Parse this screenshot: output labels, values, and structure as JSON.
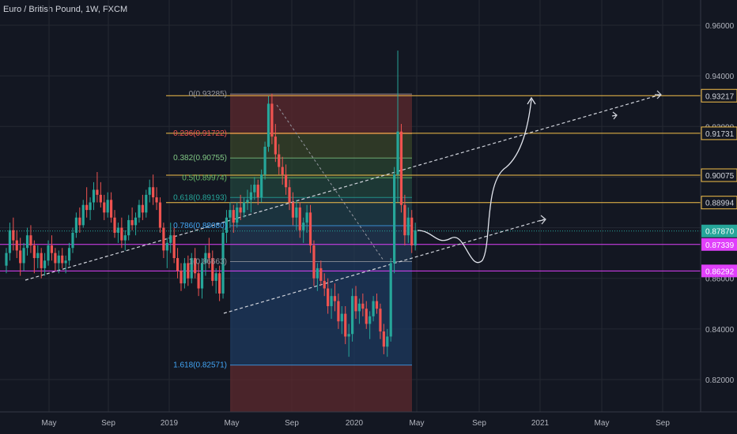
{
  "header": {
    "title": "Euro / British Pound, 1W, FXCM"
  },
  "colors": {
    "background": "#131722",
    "grid": "#242832",
    "up": "#26a69a",
    "down": "#ef5350",
    "fib_red_zone": "#5d2a2e",
    "fib_blue_zone": "#1e3a5f",
    "yellow_level": "#f5c04a",
    "magenta_level": "#e040fb",
    "current_price": "#26a69a"
  },
  "y_axis": {
    "ticks": [
      "0.96000",
      "0.94000",
      "0.92000",
      "0.90000",
      "0.88000",
      "0.86000",
      "0.84000",
      "0.82000"
    ],
    "labels": [
      {
        "text": "0.93217",
        "value": 0.93217,
        "type": "yellow"
      },
      {
        "text": "0.91731",
        "value": 0.91731,
        "type": "yellow"
      },
      {
        "text": "0.90075",
        "value": 0.90075,
        "type": "yellow"
      },
      {
        "text": "0.88994",
        "value": 0.88994,
        "type": "yellow"
      },
      {
        "text": "0.87870",
        "value": 0.8787,
        "type": "current"
      },
      {
        "text": "0.87339",
        "value": 0.87339,
        "type": "magenta"
      },
      {
        "text": "0.86292",
        "value": 0.86292,
        "type": "magenta"
      }
    ]
  },
  "x_axis": {
    "ticks": [
      "May",
      "Sep",
      "2019",
      "May",
      "Sep",
      "2020",
      "May",
      "Sep",
      "2021",
      "May",
      "Sep"
    ]
  },
  "fib_levels": [
    {
      "label": "0(0.93285)",
      "value": 0.93285,
      "color": "#9598a1"
    },
    {
      "label": "0.236(0.91722)",
      "value": 0.91722,
      "color": "#ef5350"
    },
    {
      "label": "0.382(0.90755)",
      "value": 0.90755,
      "color": "#81c784"
    },
    {
      "label": "0.5(0.89974)",
      "value": 0.89974,
      "color": "#66bb6a"
    },
    {
      "label": "0.618(0.89193)",
      "value": 0.89193,
      "color": "#26a69a"
    },
    {
      "label": "0.786(0.88080)",
      "value": 0.8808,
      "color": "#42a5f5"
    },
    {
      "label": "1(0.86663)",
      "value": 0.86663,
      "color": "#9598a1"
    },
    {
      "label": "1.618(0.82571)",
      "value": 0.82571,
      "color": "#42a5f5"
    }
  ],
  "candles": [
    [
      0.865,
      0.872,
      0.862,
      0.87
    ],
    [
      0.87,
      0.882,
      0.867,
      0.879
    ],
    [
      0.879,
      0.884,
      0.871,
      0.875
    ],
    [
      0.875,
      0.879,
      0.868,
      0.871
    ],
    [
      0.871,
      0.876,
      0.861,
      0.866
    ],
    [
      0.866,
      0.874,
      0.863,
      0.872
    ],
    [
      0.872,
      0.88,
      0.869,
      0.877
    ],
    [
      0.877,
      0.881,
      0.87,
      0.873
    ],
    [
      0.873,
      0.875,
      0.862,
      0.868
    ],
    [
      0.868,
      0.873,
      0.864,
      0.87
    ],
    [
      0.87,
      0.872,
      0.86,
      0.864
    ],
    [
      0.864,
      0.87,
      0.861,
      0.867
    ],
    [
      0.867,
      0.875,
      0.865,
      0.873
    ],
    [
      0.873,
      0.877,
      0.867,
      0.87
    ],
    [
      0.87,
      0.872,
      0.863,
      0.866
    ],
    [
      0.866,
      0.871,
      0.862,
      0.869
    ],
    [
      0.869,
      0.872,
      0.864,
      0.866
    ],
    [
      0.866,
      0.869,
      0.862,
      0.867
    ],
    [
      0.867,
      0.874,
      0.865,
      0.872
    ],
    [
      0.872,
      0.88,
      0.87,
      0.878
    ],
    [
      0.878,
      0.886,
      0.876,
      0.884
    ],
    [
      0.884,
      0.888,
      0.878,
      0.881
    ],
    [
      0.881,
      0.891,
      0.88,
      0.889
    ],
    [
      0.889,
      0.896,
      0.884,
      0.887
    ],
    [
      0.887,
      0.892,
      0.883,
      0.89
    ],
    [
      0.89,
      0.898,
      0.887,
      0.895
    ],
    [
      0.895,
      0.902,
      0.89,
      0.893
    ],
    [
      0.893,
      0.898,
      0.888,
      0.89
    ],
    [
      0.89,
      0.893,
      0.883,
      0.886
    ],
    [
      0.886,
      0.894,
      0.884,
      0.891
    ],
    [
      0.891,
      0.894,
      0.882,
      0.884
    ],
    [
      0.884,
      0.887,
      0.876,
      0.878
    ],
    [
      0.878,
      0.882,
      0.874,
      0.88
    ],
    [
      0.88,
      0.884,
      0.872,
      0.875
    ],
    [
      0.875,
      0.879,
      0.871,
      0.877
    ],
    [
      0.877,
      0.885,
      0.875,
      0.883
    ],
    [
      0.883,
      0.888,
      0.879,
      0.881
    ],
    [
      0.881,
      0.886,
      0.877,
      0.884
    ],
    [
      0.884,
      0.891,
      0.882,
      0.889
    ],
    [
      0.889,
      0.893,
      0.883,
      0.886
    ],
    [
      0.886,
      0.895,
      0.884,
      0.893
    ],
    [
      0.893,
      0.899,
      0.89,
      0.896
    ],
    [
      0.896,
      0.901,
      0.889,
      0.892
    ],
    [
      0.892,
      0.896,
      0.887,
      0.89
    ],
    [
      0.89,
      0.892,
      0.878,
      0.88
    ],
    [
      0.88,
      0.882,
      0.868,
      0.871
    ],
    [
      0.871,
      0.876,
      0.864,
      0.874
    ],
    [
      0.874,
      0.882,
      0.87,
      0.877
    ],
    [
      0.877,
      0.88,
      0.866,
      0.868
    ],
    [
      0.868,
      0.872,
      0.86,
      0.863
    ],
    [
      0.863,
      0.866,
      0.855,
      0.858
    ],
    [
      0.858,
      0.868,
      0.856,
      0.866
    ],
    [
      0.866,
      0.869,
      0.857,
      0.86
    ],
    [
      0.86,
      0.87,
      0.858,
      0.868
    ],
    [
      0.868,
      0.872,
      0.86,
      0.862
    ],
    [
      0.862,
      0.866,
      0.853,
      0.856
    ],
    [
      0.856,
      0.868,
      0.852,
      0.866
    ],
    [
      0.866,
      0.873,
      0.861,
      0.87
    ],
    [
      0.87,
      0.876,
      0.864,
      0.868
    ],
    [
      0.868,
      0.871,
      0.857,
      0.859
    ],
    [
      0.859,
      0.864,
      0.854,
      0.862
    ],
    [
      0.862,
      0.865,
      0.851,
      0.854
    ],
    [
      0.854,
      0.88,
      0.852,
      0.878
    ],
    [
      0.878,
      0.887,
      0.874,
      0.884
    ],
    [
      0.884,
      0.89,
      0.88,
      0.887
    ],
    [
      0.887,
      0.889,
      0.878,
      0.882
    ],
    [
      0.882,
      0.89,
      0.88,
      0.888
    ],
    [
      0.888,
      0.893,
      0.883,
      0.886
    ],
    [
      0.886,
      0.892,
      0.884,
      0.89
    ],
    [
      0.89,
      0.895,
      0.887,
      0.891
    ],
    [
      0.891,
      0.897,
      0.886,
      0.894
    ],
    [
      0.894,
      0.9,
      0.891,
      0.897
    ],
    [
      0.897,
      0.899,
      0.889,
      0.892
    ],
    [
      0.892,
      0.903,
      0.89,
      0.901
    ],
    [
      0.901,
      0.914,
      0.899,
      0.912
    ],
    [
      0.912,
      0.932,
      0.91,
      0.929
    ],
    [
      0.929,
      0.933,
      0.913,
      0.916
    ],
    [
      0.916,
      0.921,
      0.906,
      0.909
    ],
    [
      0.909,
      0.913,
      0.901,
      0.904
    ],
    [
      0.904,
      0.908,
      0.897,
      0.901
    ],
    [
      0.901,
      0.905,
      0.893,
      0.896
    ],
    [
      0.896,
      0.899,
      0.887,
      0.89
    ],
    [
      0.89,
      0.894,
      0.881,
      0.884
    ],
    [
      0.884,
      0.891,
      0.879,
      0.888
    ],
    [
      0.888,
      0.89,
      0.876,
      0.879
    ],
    [
      0.879,
      0.884,
      0.874,
      0.882
    ],
    [
      0.882,
      0.889,
      0.878,
      0.886
    ],
    [
      0.886,
      0.889,
      0.87,
      0.873
    ],
    [
      0.873,
      0.875,
      0.857,
      0.86
    ],
    [
      0.86,
      0.866,
      0.855,
      0.864
    ],
    [
      0.864,
      0.867,
      0.857,
      0.859
    ],
    [
      0.859,
      0.862,
      0.853,
      0.856
    ],
    [
      0.856,
      0.86,
      0.846,
      0.849
    ],
    [
      0.849,
      0.856,
      0.844,
      0.853
    ],
    [
      0.853,
      0.858,
      0.847,
      0.851
    ],
    [
      0.851,
      0.854,
      0.84,
      0.843
    ],
    [
      0.843,
      0.849,
      0.838,
      0.846
    ],
    [
      0.846,
      0.849,
      0.834,
      0.837
    ],
    [
      0.837,
      0.842,
      0.829,
      0.838
    ],
    [
      0.838,
      0.856,
      0.835,
      0.853
    ],
    [
      0.853,
      0.857,
      0.844,
      0.847
    ],
    [
      0.847,
      0.852,
      0.842,
      0.85
    ],
    [
      0.85,
      0.854,
      0.845,
      0.848
    ],
    [
      0.848,
      0.851,
      0.84,
      0.842
    ],
    [
      0.842,
      0.847,
      0.836,
      0.845
    ],
    [
      0.845,
      0.853,
      0.843,
      0.851
    ],
    [
      0.851,
      0.854,
      0.846,
      0.848
    ],
    [
      0.848,
      0.85,
      0.836,
      0.839
    ],
    [
      0.839,
      0.842,
      0.83,
      0.833
    ],
    [
      0.833,
      0.84,
      0.829,
      0.837
    ],
    [
      0.837,
      0.868,
      0.835,
      0.866
    ],
    [
      0.866,
      0.904,
      0.862,
      0.901
    ],
    [
      0.901,
      0.95,
      0.89,
      0.918
    ],
    [
      0.918,
      0.921,
      0.886,
      0.889
    ],
    [
      0.889,
      0.893,
      0.873,
      0.877
    ],
    [
      0.877,
      0.888,
      0.874,
      0.884
    ],
    [
      0.884,
      0.887,
      0.87,
      0.873
    ],
    [
      0.873,
      0.882,
      0.871,
      0.879
    ]
  ]
}
